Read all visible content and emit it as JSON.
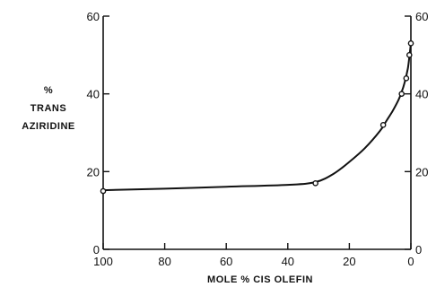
{
  "chart_data": {
    "type": "line",
    "xlabel": "MOLE % CIS OLEFIN",
    "ylabel_lines": [
      "%",
      "TRANS",
      "AZIRIDINE"
    ],
    "xlim": [
      100,
      0
    ],
    "ylim": [
      0,
      60
    ],
    "x_ticks": [
      100,
      80,
      60,
      40,
      20,
      0
    ],
    "y_ticks": [
      0,
      20,
      40,
      60
    ],
    "right_axis_ticks": [
      0,
      20,
      40,
      60
    ],
    "grid": false,
    "legend": "none",
    "series": [
      {
        "x": [
          100,
          31,
          9,
          3,
          1.5,
          0.5,
          0
        ],
        "y": [
          15,
          17,
          32,
          40,
          44,
          50,
          53
        ]
      }
    ],
    "curve_x": [
      100,
      80,
      60,
      40,
      31,
      25,
      20,
      15,
      10,
      8,
      6,
      4,
      3,
      2,
      1,
      0.5,
      0
    ],
    "curve_y": [
      15.2,
      15.6,
      16.1,
      16.6,
      17.3,
      19.5,
      22.5,
      26,
      30.5,
      33,
      35.5,
      38.5,
      40.5,
      43,
      46.5,
      49.5,
      53
    ]
  }
}
